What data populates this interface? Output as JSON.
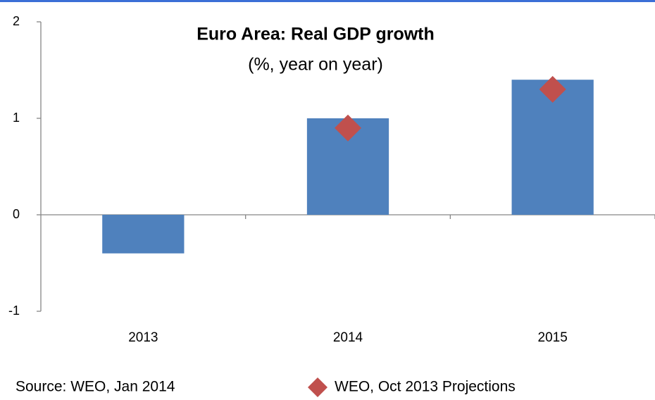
{
  "chart_data": {
    "type": "bar",
    "title": "Euro Area: Real GDP growth",
    "subtitle": "(%, year on year)",
    "source": "Source: WEO, Jan 2014",
    "categories": [
      "2013",
      "2014",
      "2015"
    ],
    "series": [
      {
        "values": [
          -0.4,
          1.0,
          1.4
        ],
        "color": "#4f81bd",
        "type": "bar"
      },
      {
        "name": "WEO, Oct 2013 Projections",
        "values": [
          null,
          0.9,
          1.3
        ],
        "color": "#c0504d",
        "type": "scatter"
      }
    ],
    "ylim": [
      -1,
      2
    ],
    "yticks": [
      -1,
      0,
      1,
      2
    ],
    "grid": false
  }
}
